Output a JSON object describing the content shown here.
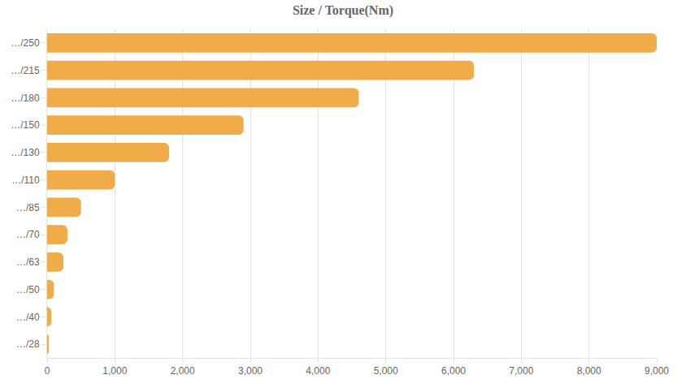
{
  "chart_data": {
    "type": "bar",
    "title": "Size / Torque(Nm)",
    "orientation": "horizontal",
    "categories": [
      "…/250",
      "…/215",
      "…/180",
      "…/150",
      "…/130",
      "…/110",
      "…/85",
      "…/70",
      "…/63",
      "…/50",
      "…/40",
      "…/28"
    ],
    "values": [
      9000,
      6300,
      4600,
      2900,
      1800,
      1000,
      500,
      300,
      240,
      100,
      60,
      25
    ],
    "color": "#efac48",
    "xlim": [
      0,
      9000
    ],
    "xticks": [
      0,
      {
        "value": 1000,
        "label": "1,000"
      },
      {
        "value": 2000,
        "label": "2,000"
      },
      {
        "value": 3000,
        "label": "3,000"
      },
      {
        "value": 4000,
        "label": "4,000"
      },
      {
        "value": 5000,
        "label": "5,000"
      },
      {
        "value": 6000,
        "label": "6,000"
      },
      {
        "value": 7000,
        "label": "7,000"
      },
      {
        "value": 8000,
        "label": "8,000"
      },
      {
        "value": 9000,
        "label": "9,000"
      }
    ],
    "grid": true
  }
}
